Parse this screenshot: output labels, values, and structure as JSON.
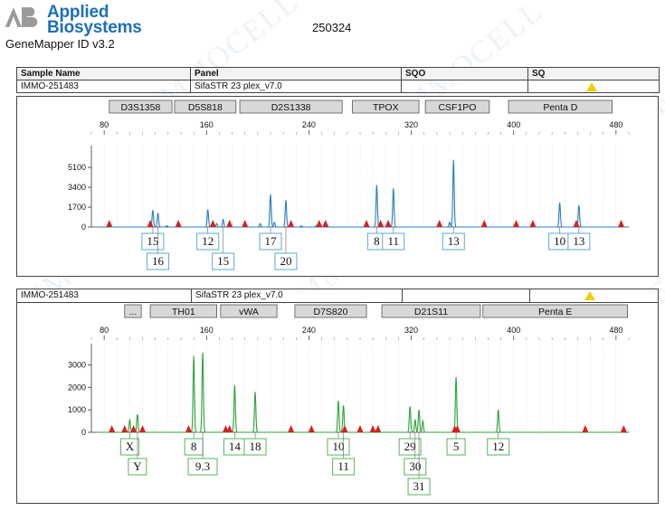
{
  "header": {
    "brand_line1": "Applied",
    "brand_line2": "Biosystems",
    "software": "GeneMapper ID v3.2",
    "run_id": "250324",
    "watermark": "IMMOCELL"
  },
  "sample_table": {
    "columns": [
      "Sample Name",
      "Panel",
      "SQO",
      "SQ"
    ],
    "row": [
      "IMMO-251483",
      "SifaSTR 23 plex_v7.0",
      "",
      ""
    ]
  },
  "colors": {
    "blue_trace": "#2e7fc0",
    "green_trace": "#2ea43c",
    "marker": "#d62020",
    "warning": "#f0d000",
    "allele_box_blue": "#5aaad8",
    "allele_box_green": "#55b55e",
    "locus_bar": "#d8d8d8"
  },
  "chart_data": [
    {
      "type": "line",
      "name": "blue dye electropherogram",
      "sample": "IMMO-251483",
      "panel": "SifaSTR 23 plex_v7.0",
      "x_ticks": [
        80,
        160,
        240,
        320,
        400,
        480
      ],
      "xlim": [
        70,
        490
      ],
      "y_ticks": [
        0,
        1700,
        3400,
        5100
      ],
      "ylim": [
        0,
        6500
      ],
      "loci": [
        {
          "name": "D3S1358",
          "start": 84,
          "end": 133
        },
        {
          "name": "D5S818",
          "start": 135,
          "end": 183
        },
        {
          "name": "D2S1338",
          "start": 186,
          "end": 266
        },
        {
          "name": "TPOX",
          "start": 274,
          "end": 326
        },
        {
          "name": "CSF1PO",
          "start": 331,
          "end": 381
        },
        {
          "name": "Penta D",
          "start": 396,
          "end": 477
        }
      ],
      "peaks": [
        {
          "x": 118,
          "height": 1450
        },
        {
          "x": 122,
          "height": 1200
        },
        {
          "x": 129,
          "height": 120
        },
        {
          "x": 161,
          "height": 1500
        },
        {
          "x": 168,
          "height": 300
        },
        {
          "x": 173,
          "height": 650
        },
        {
          "x": 202,
          "height": 300
        },
        {
          "x": 210,
          "height": 2800
        },
        {
          "x": 213,
          "height": 400
        },
        {
          "x": 222,
          "height": 2300
        },
        {
          "x": 234,
          "height": 100
        },
        {
          "x": 246,
          "height": 150
        },
        {
          "x": 293,
          "height": 3600
        },
        {
          "x": 306,
          "height": 3300
        },
        {
          "x": 350,
          "height": 420
        },
        {
          "x": 353,
          "height": 5750
        },
        {
          "x": 436,
          "height": 2100
        },
        {
          "x": 451,
          "height": 1850
        }
      ],
      "markers": [
        84,
        116,
        138,
        165,
        178,
        190,
        226,
        248,
        253,
        285,
        296,
        302,
        342,
        377,
        402,
        415,
        449,
        484
      ],
      "alleles": [
        {
          "x": 118,
          "label": "15",
          "row": 0
        },
        {
          "x": 122,
          "label": "16",
          "row": 1
        },
        {
          "x": 161,
          "label": "12",
          "row": 0
        },
        {
          "x": 173,
          "label": "15",
          "row": 1
        },
        {
          "x": 210,
          "label": "17",
          "row": 0
        },
        {
          "x": 222,
          "label": "20",
          "row": 1
        },
        {
          "x": 293,
          "label": "8",
          "row": 0
        },
        {
          "x": 306,
          "label": "11",
          "row": 0
        },
        {
          "x": 353,
          "label": "13",
          "row": 0
        },
        {
          "x": 436,
          "label": "10",
          "row": 0
        },
        {
          "x": 451,
          "label": "13",
          "row": 0
        }
      ]
    },
    {
      "type": "line",
      "name": "green dye electropherogram",
      "sample": "IMMO-251483",
      "panel": "SifaSTR 23 plex_v7.0",
      "x_ticks": [
        80,
        160,
        240,
        320,
        400,
        480
      ],
      "xlim": [
        70,
        490
      ],
      "y_ticks": [
        0,
        1000,
        2000,
        3000
      ],
      "ylim": [
        0,
        3700
      ],
      "loci": [
        {
          "name": "...",
          "start": 96,
          "end": 109
        },
        {
          "name": "TH01",
          "start": 116,
          "end": 168
        },
        {
          "name": "vWA",
          "start": 171,
          "end": 215
        },
        {
          "name": "D7S820",
          "start": 229,
          "end": 285
        },
        {
          "name": "D21S11",
          "start": 297,
          "end": 374
        },
        {
          "name": "Penta E",
          "start": 376,
          "end": 489
        }
      ],
      "peaks": [
        {
          "x": 100,
          "height": 550
        },
        {
          "x": 106,
          "height": 800
        },
        {
          "x": 150,
          "height": 3400
        },
        {
          "x": 157,
          "height": 3550
        },
        {
          "x": 182,
          "height": 2100
        },
        {
          "x": 198,
          "height": 1800
        },
        {
          "x": 263,
          "height": 1400
        },
        {
          "x": 267,
          "height": 1200
        },
        {
          "x": 319,
          "height": 1150
        },
        {
          "x": 323,
          "height": 550
        },
        {
          "x": 326,
          "height": 1000
        },
        {
          "x": 329,
          "height": 500
        },
        {
          "x": 355,
          "height": 2450
        },
        {
          "x": 388,
          "height": 1000
        }
      ],
      "markers": [
        86,
        96,
        103,
        110,
        146,
        175,
        178,
        226,
        242,
        268,
        280,
        290,
        294,
        354,
        356,
        456,
        486
      ],
      "alleles": [
        {
          "x": 100,
          "label": "X",
          "row": 0
        },
        {
          "x": 106,
          "label": "Y",
          "row": 1
        },
        {
          "x": 150,
          "label": "8",
          "row": 0
        },
        {
          "x": 157,
          "label": "9.3",
          "row": 1
        },
        {
          "x": 182,
          "label": "14",
          "row": 0
        },
        {
          "x": 198,
          "label": "18",
          "row": 0
        },
        {
          "x": 263,
          "label": "10",
          "row": 0
        },
        {
          "x": 267,
          "label": "11",
          "row": 1
        },
        {
          "x": 319,
          "label": "29",
          "row": 0
        },
        {
          "x": 323,
          "label": "30",
          "row": 1
        },
        {
          "x": 326,
          "label": "31",
          "row": 2
        },
        {
          "x": 355,
          "label": "5",
          "row": 0
        },
        {
          "x": 388,
          "label": "12",
          "row": 0
        }
      ]
    }
  ]
}
